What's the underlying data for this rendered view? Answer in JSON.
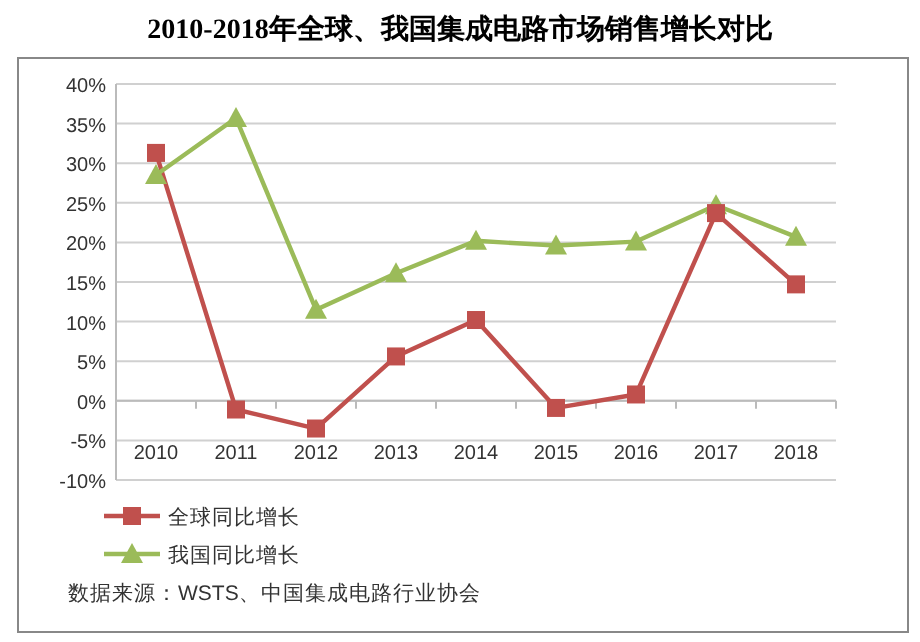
{
  "chart_data": {
    "type": "line",
    "title": "2010-2018年全球、我国集成电路市场销售增长对比",
    "categories": [
      "2010",
      "2011",
      "2012",
      "2013",
      "2014",
      "2015",
      "2016",
      "2017",
      "2018"
    ],
    "series": [
      {
        "name": "全球同比增长",
        "color": "#c0504d",
        "marker": "square",
        "values": [
          31.3,
          -1.1,
          -3.5,
          5.6,
          10.2,
          -0.9,
          0.8,
          23.7,
          14.7
        ]
      },
      {
        "name": "我国同比增长",
        "color": "#9bbb59",
        "marker": "triangle",
        "values": [
          28.5,
          35.7,
          11.5,
          16.1,
          20.2,
          19.6,
          20.1,
          24.7,
          20.7
        ]
      }
    ],
    "ylim": [
      -10,
      40
    ],
    "yticks": [
      {
        "value": -10,
        "label": "-10%"
      },
      {
        "value": -5,
        "label": "-5%"
      },
      {
        "value": 0,
        "label": "0%"
      },
      {
        "value": 5,
        "label": "5%"
      },
      {
        "value": 10,
        "label": "10%"
      },
      {
        "value": 15,
        "label": "15%"
      },
      {
        "value": 20,
        "label": "20%"
      },
      {
        "value": 25,
        "label": "25%"
      },
      {
        "value": 30,
        "label": "30%"
      },
      {
        "value": 35,
        "label": "35%"
      },
      {
        "value": 40,
        "label": "40%"
      }
    ],
    "grid": "y",
    "legend": "bottom left",
    "line_style": "solid",
    "annotations": [
      "数据来源：WSTS、中国集成电路行业协会"
    ]
  }
}
